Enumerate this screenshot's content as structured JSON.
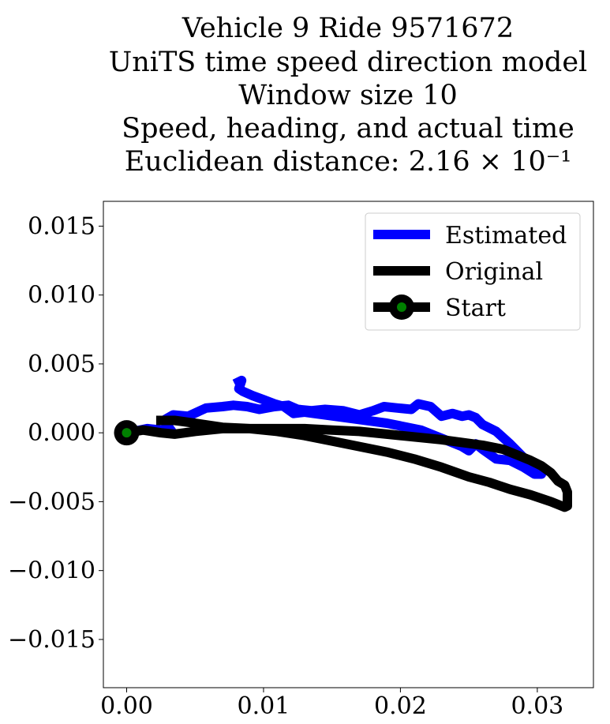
{
  "chart_data": {
    "type": "line",
    "title_lines": [
      "Vehicle 9 Ride 9571672",
      "UniTS time speed direction model",
      "Window size 10",
      "Speed, heading, and actual time",
      "Euclidean distance: 2.16 × 10⁻¹"
    ],
    "xlabel": "",
    "ylabel": "",
    "xlim": [
      -0.0017,
      0.0341
    ],
    "ylim": [
      -0.0185,
      0.0168
    ],
    "x_ticks": [
      0.0,
      0.01,
      0.02,
      0.03
    ],
    "x_tick_labels": [
      "0.00",
      "0.01",
      "0.02",
      "0.03"
    ],
    "y_ticks": [
      0.015,
      0.01,
      0.005,
      0.0,
      -0.005,
      -0.01,
      -0.015
    ],
    "y_tick_labels": [
      "0.015",
      "0.010",
      "0.005",
      "0.000",
      "−0.005",
      "−0.010",
      "−0.015"
    ],
    "grid": false,
    "legend_position": "top-right",
    "series": [
      {
        "name": "Estimated",
        "color": "#0000ff",
        "points": [
          [
            0.0,
            0.0
          ],
          [
            0.0015,
            0.0003
          ],
          [
            0.0025,
            0.0002
          ],
          [
            0.0033,
            0.0001
          ],
          [
            0.0027,
            0.0009
          ],
          [
            0.0034,
            0.0013
          ],
          [
            0.0045,
            0.0012
          ],
          [
            0.0058,
            0.0018
          ],
          [
            0.007,
            0.0019
          ],
          [
            0.0078,
            0.002
          ],
          [
            0.0088,
            0.0019
          ],
          [
            0.0097,
            0.0017
          ],
          [
            0.0108,
            0.0019
          ],
          [
            0.0118,
            0.002
          ],
          [
            0.0125,
            0.0017
          ],
          [
            0.0135,
            0.0016
          ],
          [
            0.0145,
            0.0017
          ],
          [
            0.0158,
            0.0016
          ],
          [
            0.017,
            0.0013
          ],
          [
            0.018,
            0.0016
          ],
          [
            0.0188,
            0.0019
          ],
          [
            0.0198,
            0.0018
          ],
          [
            0.0208,
            0.0017
          ],
          [
            0.0213,
            0.0021
          ],
          [
            0.0222,
            0.0019
          ],
          [
            0.023,
            0.0012
          ],
          [
            0.0238,
            0.0014
          ],
          [
            0.0245,
            0.0012
          ],
          [
            0.025,
            0.0013
          ],
          [
            0.0255,
            0.0011
          ],
          [
            0.026,
            0.0006
          ],
          [
            0.027,
            0.0001
          ],
          [
            0.028,
            -0.0008
          ],
          [
            0.029,
            -0.0018
          ],
          [
            0.0298,
            -0.0022
          ],
          [
            0.0303,
            -0.003
          ],
          [
            0.0298,
            -0.003
          ],
          [
            0.029,
            -0.0025
          ],
          [
            0.028,
            -0.002
          ],
          [
            0.027,
            -0.0019
          ],
          [
            0.026,
            -0.0012
          ],
          [
            0.0255,
            -0.0008
          ],
          [
            0.025,
            -0.0013
          ],
          [
            0.0245,
            -0.001
          ],
          [
            0.0235,
            -0.0006
          ],
          [
            0.0225,
            -0.0002
          ],
          [
            0.0215,
            0.0002
          ],
          [
            0.0205,
            0.0004
          ],
          [
            0.019,
            0.0007
          ],
          [
            0.0175,
            0.0009
          ],
          [
            0.016,
            0.0011
          ],
          [
            0.0145,
            0.0013
          ],
          [
            0.013,
            0.0015
          ],
          [
            0.0122,
            0.0014
          ],
          [
            0.0115,
            0.0019
          ],
          [
            0.0108,
            0.0021
          ],
          [
            0.01,
            0.0024
          ],
          [
            0.0092,
            0.0027
          ],
          [
            0.0085,
            0.003
          ],
          [
            0.0082,
            0.0032
          ],
          [
            0.0084,
            0.0038
          ],
          [
            0.0082,
            0.0037
          ]
        ]
      },
      {
        "name": "Original",
        "color": "#000000",
        "points": [
          [
            0.0,
            0.0
          ],
          [
            0.0012,
            0.0002
          ],
          [
            0.0025,
            0.0
          ],
          [
            0.0035,
            -0.0001
          ],
          [
            0.005,
            0.0001
          ],
          [
            0.007,
            0.0003
          ],
          [
            0.009,
            0.0003
          ],
          [
            0.011,
            0.0003
          ],
          [
            0.013,
            0.0003
          ],
          [
            0.015,
            0.0002
          ],
          [
            0.017,
            0.0001
          ],
          [
            0.019,
            -0.0001
          ],
          [
            0.021,
            -0.0003
          ],
          [
            0.023,
            -0.0005
          ],
          [
            0.0245,
            -0.0007
          ],
          [
            0.026,
            -0.0009
          ],
          [
            0.0275,
            -0.0012
          ],
          [
            0.0285,
            -0.0016
          ],
          [
            0.0295,
            -0.002
          ],
          [
            0.0303,
            -0.0024
          ],
          [
            0.031,
            -0.0029
          ],
          [
            0.0315,
            -0.0035
          ],
          [
            0.032,
            -0.0038
          ],
          [
            0.0322,
            -0.0043
          ],
          [
            0.0322,
            -0.0048
          ],
          [
            0.0322,
            -0.0053
          ],
          [
            0.032,
            -0.0054
          ],
          [
            0.031,
            -0.005
          ],
          [
            0.0295,
            -0.0045
          ],
          [
            0.028,
            -0.0041
          ],
          [
            0.0265,
            -0.0036
          ],
          [
            0.025,
            -0.0032
          ],
          [
            0.023,
            -0.0025
          ],
          [
            0.021,
            -0.0019
          ],
          [
            0.019,
            -0.0014
          ],
          [
            0.017,
            -0.001
          ],
          [
            0.015,
            -0.0006
          ],
          [
            0.013,
            -0.0002
          ],
          [
            0.011,
            0.0001
          ],
          [
            0.009,
            0.0003
          ],
          [
            0.007,
            0.0004
          ],
          [
            0.005,
            0.0007
          ],
          [
            0.0035,
            0.0009
          ],
          [
            0.0025,
            0.0009
          ]
        ]
      },
      {
        "name": "Start",
        "color": "#000000",
        "marker_face_color": "#008000",
        "points": [
          [
            0.0,
            0.0
          ]
        ]
      }
    ]
  }
}
